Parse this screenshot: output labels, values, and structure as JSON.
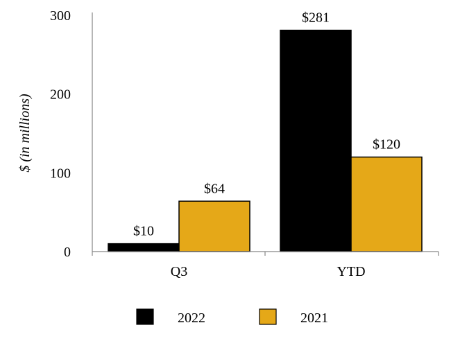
{
  "chart_data": {
    "type": "bar",
    "title": "",
    "xlabel": "",
    "ylabel": "$ (in millions)",
    "ylim": [
      0,
      300
    ],
    "yticks": [
      "0",
      "100",
      "200",
      "300"
    ],
    "categories": [
      "Q3",
      "YTD"
    ],
    "series": [
      {
        "name": "2022",
        "values": [
          10,
          281
        ],
        "labels": [
          "$10",
          "$281"
        ],
        "color": "#000000"
      },
      {
        "name": "2021",
        "values": [
          64,
          120
        ],
        "labels": [
          "$64",
          "$120"
        ],
        "color": "#E5A818"
      }
    ],
    "grid": false,
    "legend_position": "bottom"
  }
}
